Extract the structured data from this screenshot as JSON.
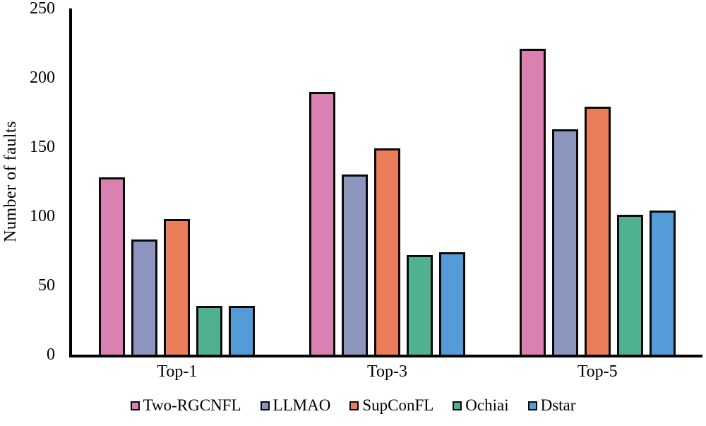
{
  "chart_data": {
    "type": "bar",
    "title": "",
    "xlabel": "",
    "ylabel": "Number of faults",
    "categories": [
      "Top-1",
      "Top-3",
      "Top-5"
    ],
    "series": [
      {
        "name": "Two-RGCNFL",
        "color": "#D981B0",
        "values": [
          128,
          190,
          221
        ]
      },
      {
        "name": "LLMAO",
        "color": "#8C95BE",
        "values": [
          83,
          130,
          163
        ]
      },
      {
        "name": "SupConFL",
        "color": "#EC7D5B",
        "values": [
          98,
          149,
          179
        ]
      },
      {
        "name": "Ochiai",
        "color": "#4FB191",
        "values": [
          35,
          72,
          101
        ]
      },
      {
        "name": "Dstar",
        "color": "#549BD8",
        "values": [
          35,
          74,
          104
        ]
      }
    ],
    "ylim": [
      0,
      250
    ],
    "yticks": [
      0,
      50,
      100,
      150,
      200,
      250
    ],
    "grid": false,
    "legend_position": "bottom",
    "axis_color": "#000000",
    "bar_outline_color": "#0a0a0a"
  }
}
